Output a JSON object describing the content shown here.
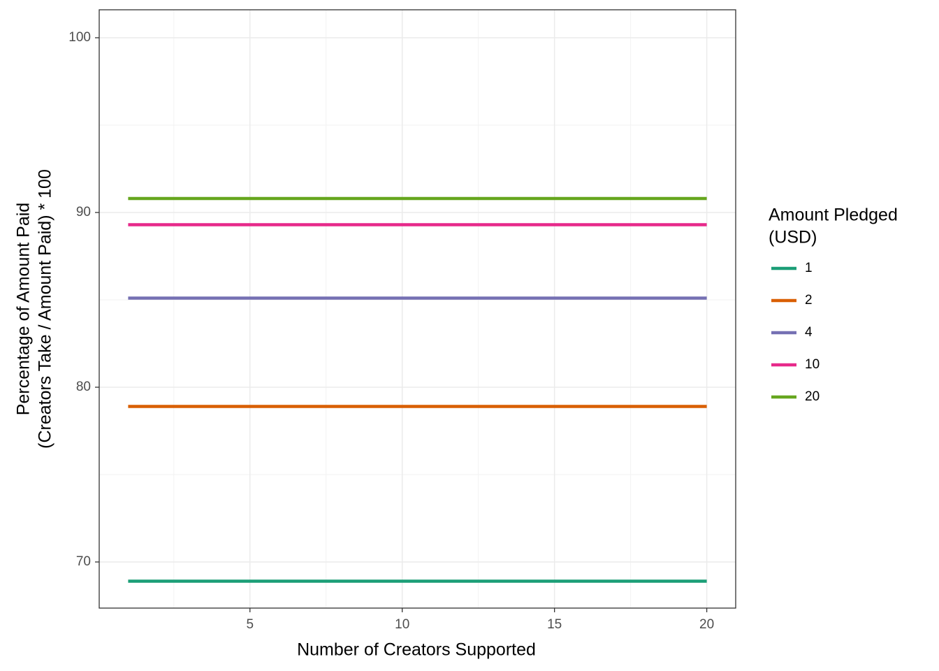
{
  "chart_data": {
    "type": "line",
    "x_label": "Number of Creators Supported",
    "y_label": [
      "Percentage of Amount Paid",
      "(Creators Take / Amount Paid) * 100"
    ],
    "legend_title": [
      "Amount Pledged",
      "(USD)"
    ],
    "legend": "right",
    "grid": true,
    "minor_grid": true,
    "x": [
      1,
      2,
      3,
      4,
      5,
      6,
      7,
      8,
      9,
      10,
      11,
      12,
      13,
      14,
      15,
      16,
      17,
      18,
      19,
      20
    ],
    "xlim": [
      0.05,
      20.95
    ],
    "xticks": [
      5,
      10,
      15,
      20
    ],
    "ylim": [
      67.36,
      101.6
    ],
    "yticks": [
      70,
      80,
      90,
      100
    ],
    "series": [
      {
        "name": "1",
        "color": "#1b9e77",
        "values": [
          68.9,
          68.9,
          68.9,
          68.9,
          68.9,
          68.9,
          68.9,
          68.9,
          68.9,
          68.9,
          68.9,
          68.9,
          68.9,
          68.9,
          68.9,
          68.9,
          68.9,
          68.9,
          68.9,
          68.9
        ]
      },
      {
        "name": "2",
        "color": "#d95f02",
        "values": [
          78.9,
          78.9,
          78.9,
          78.9,
          78.9,
          78.9,
          78.9,
          78.9,
          78.9,
          78.9,
          78.9,
          78.9,
          78.9,
          78.9,
          78.9,
          78.9,
          78.9,
          78.9,
          78.9,
          78.9
        ]
      },
      {
        "name": "4",
        "color": "#7570b3",
        "values": [
          85.1,
          85.1,
          85.1,
          85.1,
          85.1,
          85.1,
          85.1,
          85.1,
          85.1,
          85.1,
          85.1,
          85.1,
          85.1,
          85.1,
          85.1,
          85.1,
          85.1,
          85.1,
          85.1,
          85.1
        ]
      },
      {
        "name": "10",
        "color": "#e7298a",
        "values": [
          89.3,
          89.3,
          89.3,
          89.3,
          89.3,
          89.3,
          89.3,
          89.3,
          89.3,
          89.3,
          89.3,
          89.3,
          89.3,
          89.3,
          89.3,
          89.3,
          89.3,
          89.3,
          89.3,
          89.3
        ]
      },
      {
        "name": "20",
        "color": "#66a61e",
        "values": [
          90.8,
          90.8,
          90.8,
          90.8,
          90.8,
          90.8,
          90.8,
          90.8,
          90.8,
          90.8,
          90.8,
          90.8,
          90.8,
          90.8,
          90.8,
          90.8,
          90.8,
          90.8,
          90.8,
          90.8
        ]
      }
    ]
  }
}
